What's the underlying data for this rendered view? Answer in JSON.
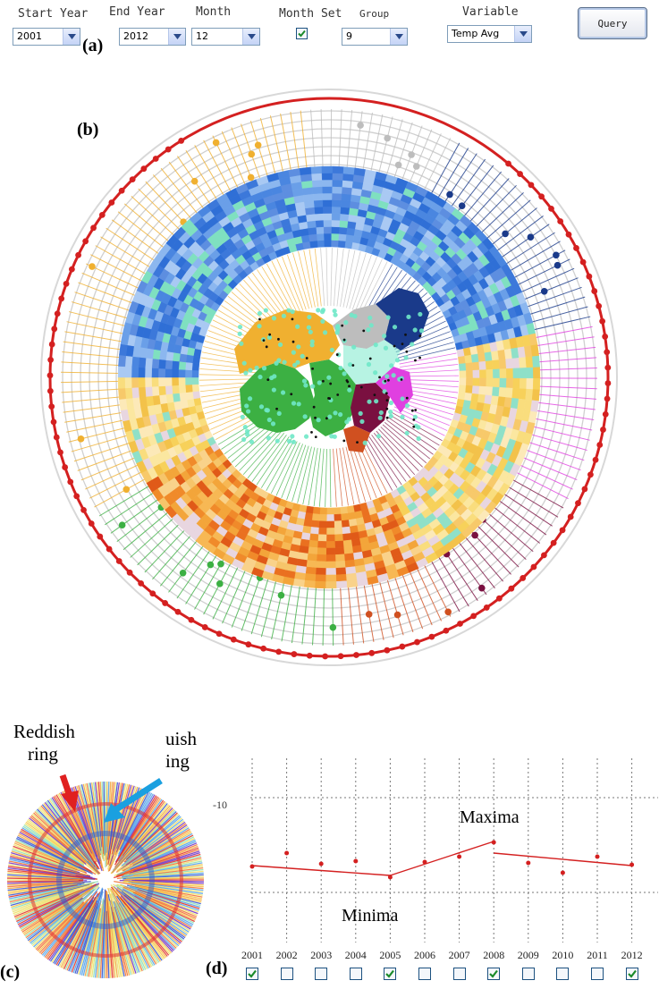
{
  "toolbar": {
    "start_year": {
      "label": "Start Year",
      "value": "2001"
    },
    "end_year": {
      "label": "End Year",
      "value": "2012"
    },
    "month": {
      "label": "Month",
      "value": "12"
    },
    "month_set": {
      "label": "Month Set",
      "checked": true
    },
    "group": {
      "label": "Group",
      "value": "9"
    },
    "variable": {
      "label": "Variable",
      "value": "Temp Avg"
    },
    "query_label": "Query"
  },
  "panels": {
    "a": "(a)",
    "b": "(b)",
    "c": "(c)",
    "d": "(d)"
  },
  "panel_c": {
    "reddish_line1": "Reddish",
    "reddish_line2": "ring",
    "bluish_line1": "uish",
    "bluish_line2": "ing"
  },
  "colors": {
    "red_ring": "#d42020",
    "navy": "#1a3a8a",
    "gray": "#bdbdbd",
    "yellow": "#f0b030",
    "magenta": "#e040e0",
    "green": "#3cb043",
    "maroon": "#7a1040",
    "orange_red": "#d05020",
    "cyan_dot": "#6fe8c8"
  },
  "chart_data": {
    "type": "line",
    "x": [
      "2001",
      "2002",
      "2003",
      "2004",
      "2005",
      "2006",
      "2007",
      "2008",
      "2009",
      "2010",
      "2011",
      "2012"
    ],
    "ytick": "-10",
    "labels": {
      "maxima": "Maxima",
      "minima": "Minima"
    },
    "checked": [
      true,
      false,
      false,
      false,
      true,
      false,
      false,
      true,
      false,
      false,
      false,
      true
    ]
  }
}
